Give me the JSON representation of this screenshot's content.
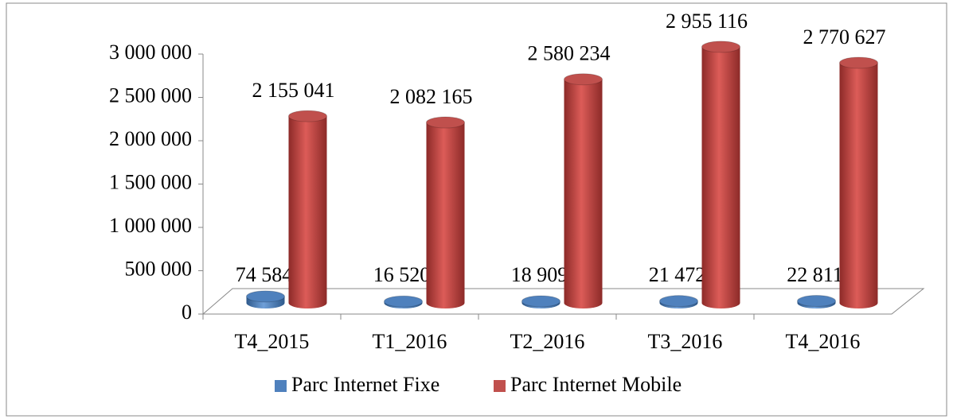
{
  "chart_data": {
    "type": "bar3d",
    "categories": [
      "T4_2015",
      "T1_2016",
      "T2_2016",
      "T3_2016",
      "T4_2016"
    ],
    "series": [
      {
        "name": "Parc Internet Fixe",
        "color": "#4f81bd",
        "values": [
          74584,
          16520,
          18909,
          21472,
          22811
        ],
        "value_labels": [
          "74 584",
          "16 520",
          "18 909",
          "21 472",
          "22 811"
        ]
      },
      {
        "name": "Parc Internet Mobile",
        "color": "#c0504d",
        "values": [
          2155041,
          2082165,
          2580234,
          2955116,
          2770627
        ],
        "value_labels": [
          "2 155 041",
          "2 082 165",
          "2 580 234",
          "2 955 116",
          "2 770 627"
        ]
      }
    ],
    "ylim": [
      0,
      3000000
    ],
    "yticks": [
      0,
      {
        "value": 500000,
        "label": "500 000"
      },
      {
        "value": 1000000,
        "label": "1 000 000"
      },
      {
        "value": 1500000,
        "label": "1 500 000"
      },
      {
        "value": 2000000,
        "label": "2 000 000"
      },
      {
        "value": 2500000,
        "label": "2 500 000"
      },
      {
        "value": 3000000,
        "label": "3 000 000"
      }
    ],
    "legend": "bottom"
  }
}
